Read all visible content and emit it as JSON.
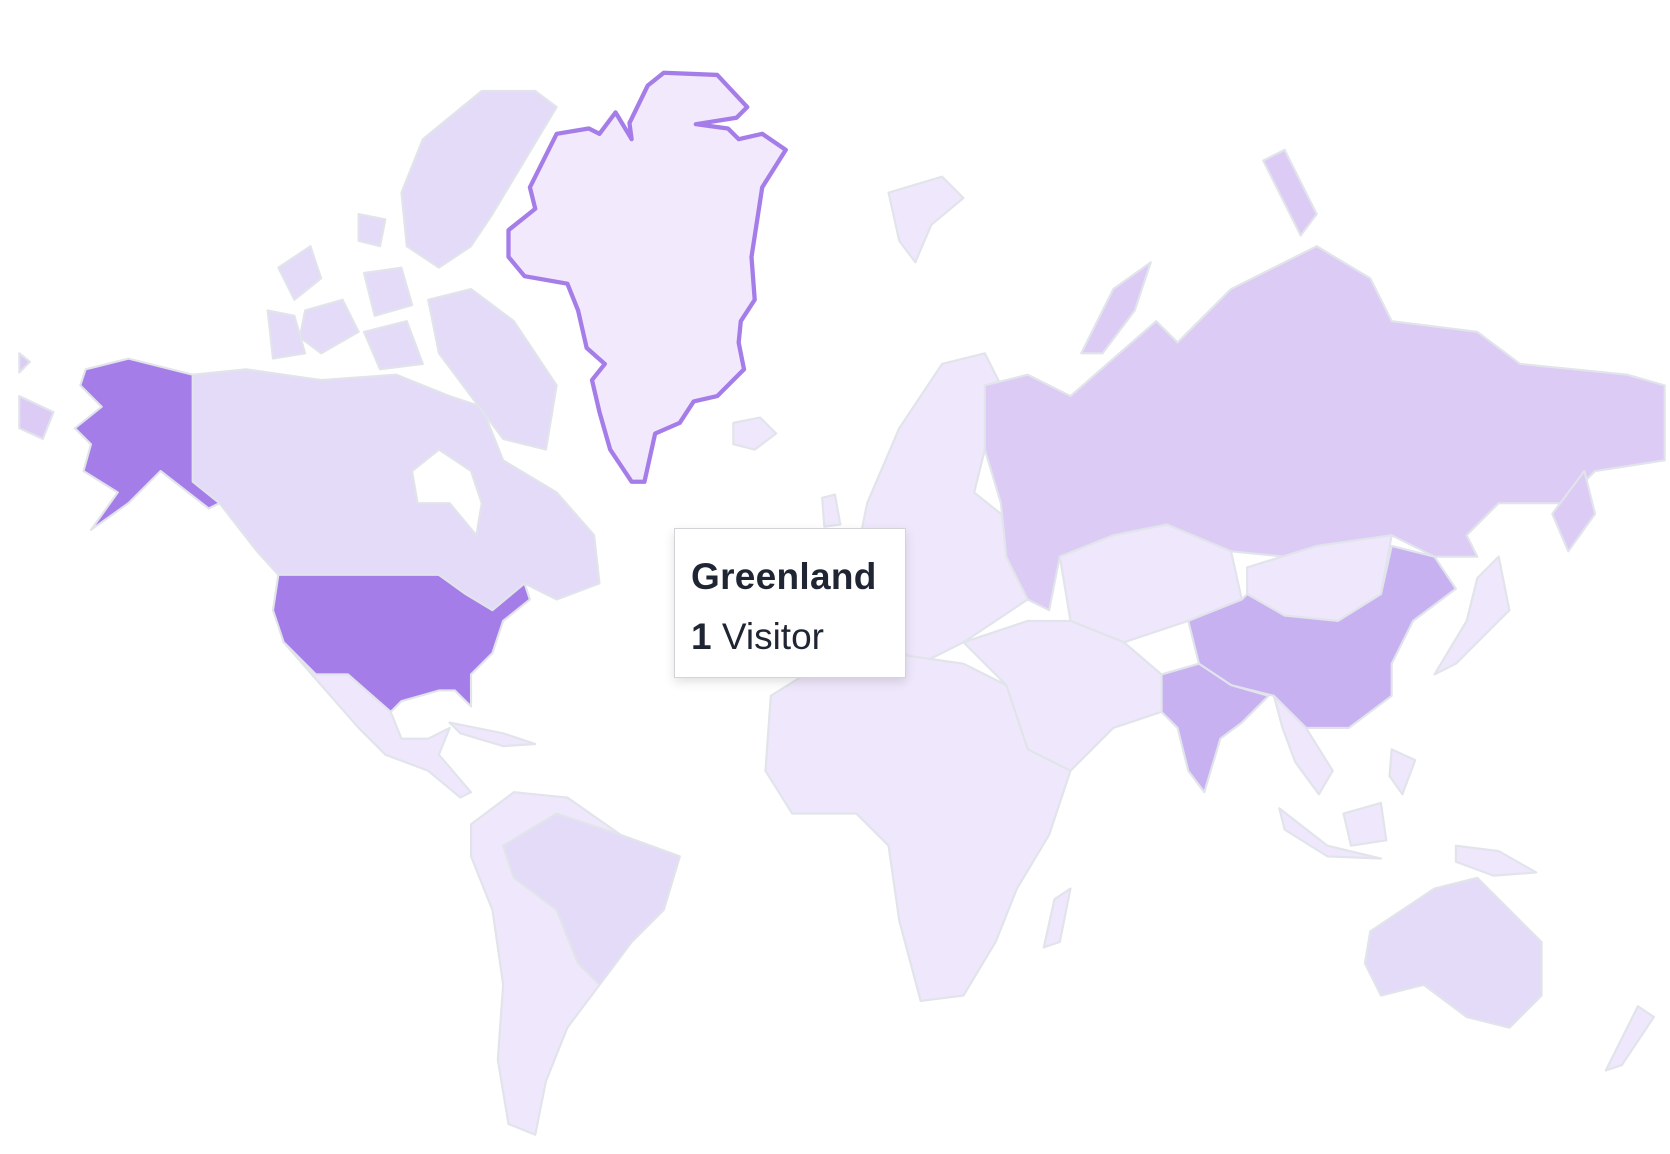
{
  "colors": {
    "highest": "#a57de8",
    "high": "#c8b1f1",
    "medium": "#dccbf5",
    "low": "#e4dbf8",
    "lowest": "#efe7fb",
    "hovered_fill": "#f3e9fd",
    "hovered_stroke": "#a57de8",
    "border": "#e1e4ea"
  },
  "tooltip": {
    "country": "Greenland",
    "count": "1",
    "unit": "Visitor"
  }
}
